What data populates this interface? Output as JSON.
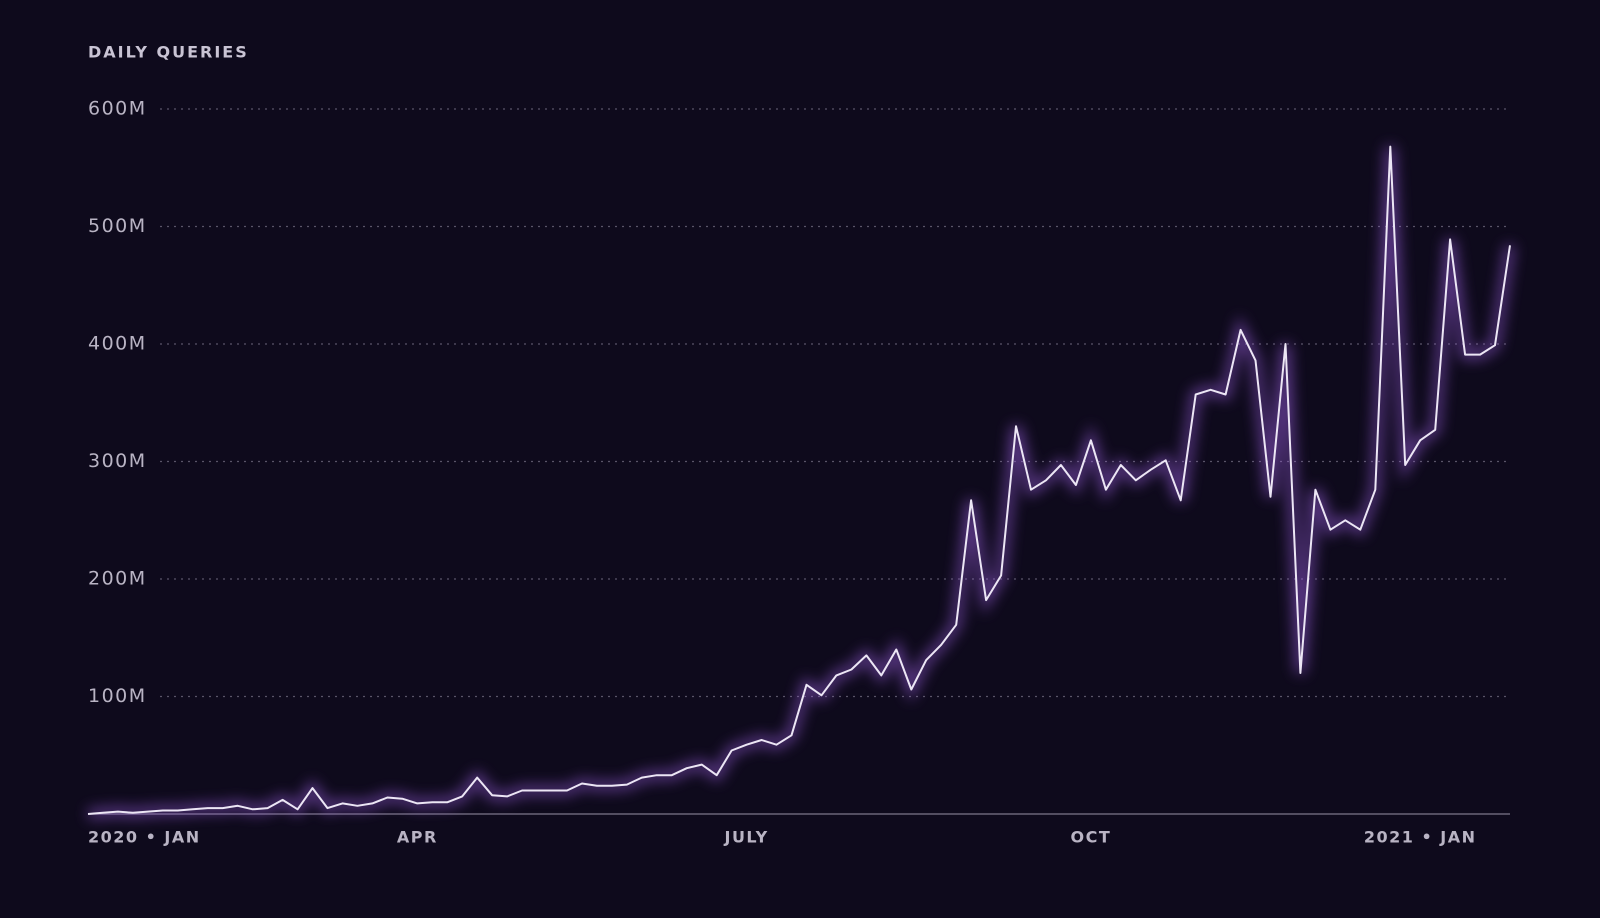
{
  "chart_data": {
    "type": "line",
    "title": "DAILY QUERIES",
    "categories": [
      "2020 • JAN",
      null,
      null,
      null,
      null,
      null,
      null,
      null,
      null,
      null,
      null,
      null,
      null,
      null,
      null,
      null,
      null,
      null,
      null,
      null,
      null,
      null,
      "APR",
      null,
      null,
      null,
      null,
      null,
      null,
      null,
      null,
      null,
      null,
      null,
      null,
      null,
      null,
      null,
      null,
      null,
      null,
      null,
      null,
      null,
      "JULY",
      null,
      null,
      null,
      null,
      null,
      null,
      null,
      null,
      null,
      null,
      null,
      null,
      null,
      null,
      null,
      null,
      null,
      null,
      null,
      null,
      null,
      null,
      "OCT",
      null,
      null,
      null,
      null,
      null,
      null,
      null,
      null,
      null,
      null,
      null,
      null,
      null,
      null,
      null,
      null,
      null,
      null,
      null,
      null,
      null,
      "2021 • JAN",
      null,
      null,
      null,
      null,
      null,
      null
    ],
    "values": [
      0,
      1,
      2,
      1,
      2,
      3,
      3,
      4,
      5,
      5,
      7,
      4,
      5,
      12,
      4,
      22,
      5,
      9,
      7,
      9,
      14,
      13,
      9,
      10,
      10,
      15,
      31,
      16,
      15,
      20,
      20,
      20,
      20,
      26,
      24,
      24,
      25,
      31,
      33,
      33,
      39,
      42,
      33,
      54,
      59,
      63,
      59,
      67,
      110,
      101,
      118,
      123,
      135,
      118,
      140,
      106,
      131,
      144,
      161,
      267,
      182,
      203,
      330,
      276,
      284,
      297,
      280,
      318,
      276,
      297,
      284,
      293,
      301,
      267,
      357,
      361,
      357,
      412,
      386,
      270,
      400,
      120,
      276,
      242,
      250,
      242,
      276,
      568,
      297,
      318,
      327,
      489,
      391,
      391,
      399,
      484
    ],
    "color": "#ece6f5",
    "ylim": [
      0,
      600
    ],
    "yticks": [
      {
        "value": 100,
        "label": "100M"
      },
      {
        "value": 200,
        "label": "200M"
      },
      {
        "value": 300,
        "label": "300M"
      },
      {
        "value": 400,
        "label": "400M"
      },
      {
        "value": 500,
        "label": "500M"
      },
      {
        "value": 600,
        "label": "600M"
      }
    ],
    "grid": true
  }
}
